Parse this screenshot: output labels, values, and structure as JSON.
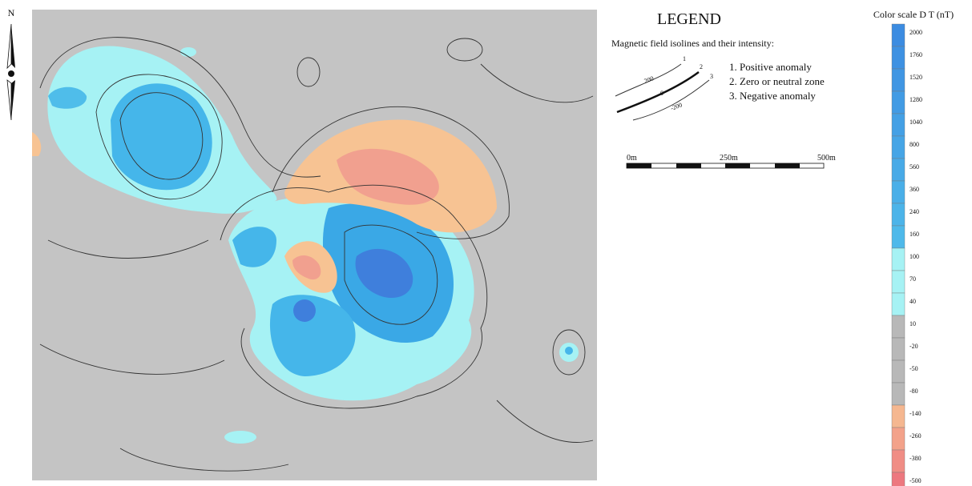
{
  "north": "N",
  "legend": {
    "title": "LEGEND",
    "subtitle": "Magnetic field isolines and their intensity:",
    "items": [
      "1. Positive anomaly",
      "2. Zero or neutral zone",
      "3. Negative anomaly"
    ],
    "isoline_numbers": [
      "1",
      "2",
      "3"
    ],
    "isoline_values": [
      "200",
      "0",
      "-200"
    ]
  },
  "scale_bar": {
    "labels": [
      "0m",
      "250m",
      "500m"
    ]
  },
  "color_scale": {
    "title": "Color scale D T (nT)",
    "labels": [
      2000,
      1760,
      1520,
      1280,
      1040,
      800,
      560,
      360,
      240,
      160,
      100,
      70,
      40,
      10,
      -20,
      -50,
      -80,
      -140,
      -260,
      -380,
      -500
    ]
  }
}
